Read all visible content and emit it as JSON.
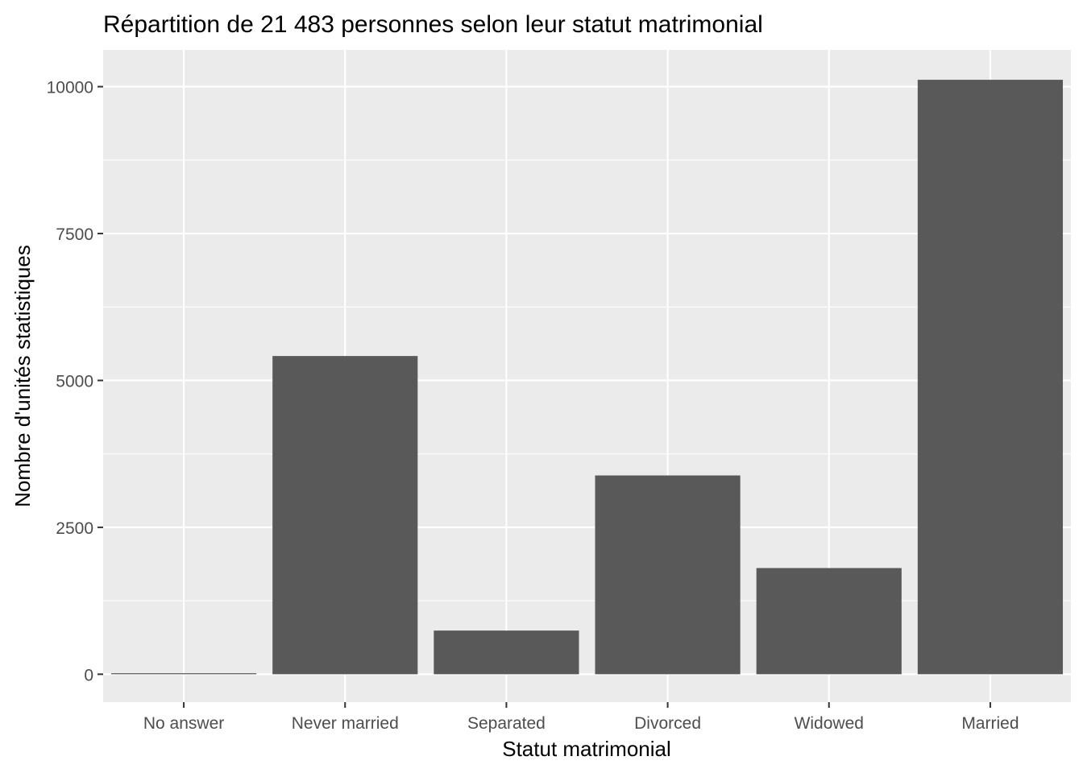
{
  "chart_data": {
    "type": "bar",
    "title": "Répartition de 21 483 personnes selon leur statut matrimonial",
    "xlabel": "Statut matrimonial",
    "ylabel": "Nombre d'unités statistiques",
    "categories": [
      "No answer",
      "Never married",
      "Separated",
      "Divorced",
      "Widowed",
      "Married"
    ],
    "values": [
      17,
      5416,
      743,
      3383,
      1807,
      10117
    ],
    "ylim": [
      -475,
      10625
    ],
    "yticks": [
      0,
      2500,
      5000,
      7500,
      10000
    ],
    "ytick_labels": [
      "0",
      "2500",
      "5000",
      "7500",
      "10000"
    ],
    "grid": true,
    "colors": {
      "panel_background": "#ebebeb",
      "grid_major": "#ffffff",
      "bar_fill": "#595959",
      "tick": "#333333"
    }
  }
}
